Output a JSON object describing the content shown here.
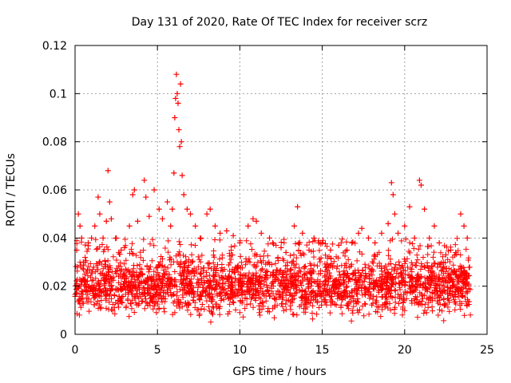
{
  "chart_data": {
    "type": "scatter",
    "title": "Day 131 of 2020, Rate Of TEC Index for receiver scrz",
    "xlabel": "GPS time / hours",
    "ylabel": "ROTI / TECUs",
    "xlim": [
      0,
      25
    ],
    "ylim": [
      0,
      0.12
    ],
    "xticks": [
      0,
      5,
      10,
      15,
      20,
      25
    ],
    "xtick_labels": [
      "0",
      "5",
      "10",
      "15",
      "20",
      "25"
    ],
    "yticks": [
      0,
      0.02,
      0.04,
      0.06,
      0.08,
      0.1,
      0.12
    ],
    "ytick_labels": [
      "0",
      "0.02",
      "0.04",
      "0.06",
      "0.08",
      "0.1",
      "0.12"
    ],
    "grid": true,
    "marker": "plus",
    "series": [
      {
        "name": "ROTI",
        "color": "#ff0000",
        "summary": {
          "x_range": [
            0,
            24
          ],
          "typical_band": [
            0.01,
            0.03
          ],
          "peak": {
            "x": 6.2,
            "y": 0.108
          }
        },
        "points": [
          [
            0.1,
            0.035
          ],
          [
            0.15,
            0.028
          ],
          [
            0.2,
            0.05
          ],
          [
            0.3,
            0.045
          ],
          [
            0.4,
            0.04
          ],
          [
            0.5,
            0.03
          ],
          [
            0.6,
            0.025
          ],
          [
            0.8,
            0.038
          ],
          [
            1.0,
            0.04
          ],
          [
            1.2,
            0.045
          ],
          [
            1.4,
            0.057
          ],
          [
            1.5,
            0.05
          ],
          [
            1.7,
            0.04
          ],
          [
            1.9,
            0.047
          ],
          [
            2.0,
            0.068
          ],
          [
            2.1,
            0.055
          ],
          [
            2.2,
            0.048
          ],
          [
            2.5,
            0.04
          ],
          [
            2.8,
            0.035
          ],
          [
            3.0,
            0.036
          ],
          [
            3.3,
            0.045
          ],
          [
            3.5,
            0.058
          ],
          [
            3.6,
            0.06
          ],
          [
            3.8,
            0.047
          ],
          [
            4.2,
            0.064
          ],
          [
            4.3,
            0.057
          ],
          [
            4.5,
            0.049
          ],
          [
            4.8,
            0.06
          ],
          [
            5.1,
            0.052
          ],
          [
            5.3,
            0.048
          ],
          [
            5.6,
            0.055
          ],
          [
            5.8,
            0.045
          ],
          [
            5.9,
            0.052
          ],
          [
            6.0,
            0.067
          ],
          [
            6.05,
            0.09
          ],
          [
            6.1,
            0.098
          ],
          [
            6.15,
            0.108
          ],
          [
            6.2,
            0.1
          ],
          [
            6.25,
            0.096
          ],
          [
            6.3,
            0.085
          ],
          [
            6.35,
            0.078
          ],
          [
            6.4,
            0.104
          ],
          [
            6.45,
            0.08
          ],
          [
            6.5,
            0.066
          ],
          [
            6.6,
            0.058
          ],
          [
            6.8,
            0.052
          ],
          [
            7.0,
            0.05
          ],
          [
            7.3,
            0.045
          ],
          [
            7.6,
            0.04
          ],
          [
            8.0,
            0.05
          ],
          [
            8.2,
            0.052
          ],
          [
            8.5,
            0.045
          ],
          [
            8.8,
            0.042
          ],
          [
            9.2,
            0.043
          ],
          [
            9.6,
            0.041
          ],
          [
            10.0,
            0.038
          ],
          [
            10.5,
            0.045
          ],
          [
            10.8,
            0.048
          ],
          [
            11.0,
            0.047
          ],
          [
            11.3,
            0.042
          ],
          [
            11.8,
            0.04
          ],
          [
            12.0,
            0.038
          ],
          [
            12.5,
            0.036
          ],
          [
            12.8,
            0.034
          ],
          [
            13.3,
            0.045
          ],
          [
            13.5,
            0.053
          ],
          [
            13.8,
            0.042
          ],
          [
            14.2,
            0.035
          ],
          [
            14.5,
            0.04
          ],
          [
            14.8,
            0.038
          ],
          [
            15.0,
            0.038
          ],
          [
            15.5,
            0.035
          ],
          [
            16.0,
            0.037
          ],
          [
            16.5,
            0.035
          ],
          [
            16.8,
            0.038
          ],
          [
            17.2,
            0.042
          ],
          [
            17.4,
            0.044
          ],
          [
            17.8,
            0.04
          ],
          [
            18.2,
            0.038
          ],
          [
            18.6,
            0.042
          ],
          [
            19.0,
            0.046
          ],
          [
            19.2,
            0.063
          ],
          [
            19.3,
            0.058
          ],
          [
            19.4,
            0.05
          ],
          [
            19.6,
            0.042
          ],
          [
            20.0,
            0.045
          ],
          [
            20.3,
            0.053
          ],
          [
            20.6,
            0.04
          ],
          [
            20.9,
            0.064
          ],
          [
            21.0,
            0.062
          ],
          [
            21.2,
            0.052
          ],
          [
            21.5,
            0.04
          ],
          [
            21.8,
            0.045
          ],
          [
            22.1,
            0.038
          ],
          [
            22.5,
            0.033
          ],
          [
            22.8,
            0.035
          ],
          [
            23.1,
            0.034
          ],
          [
            23.4,
            0.05
          ],
          [
            23.6,
            0.045
          ],
          [
            23.8,
            0.04
          ]
        ]
      }
    ]
  }
}
